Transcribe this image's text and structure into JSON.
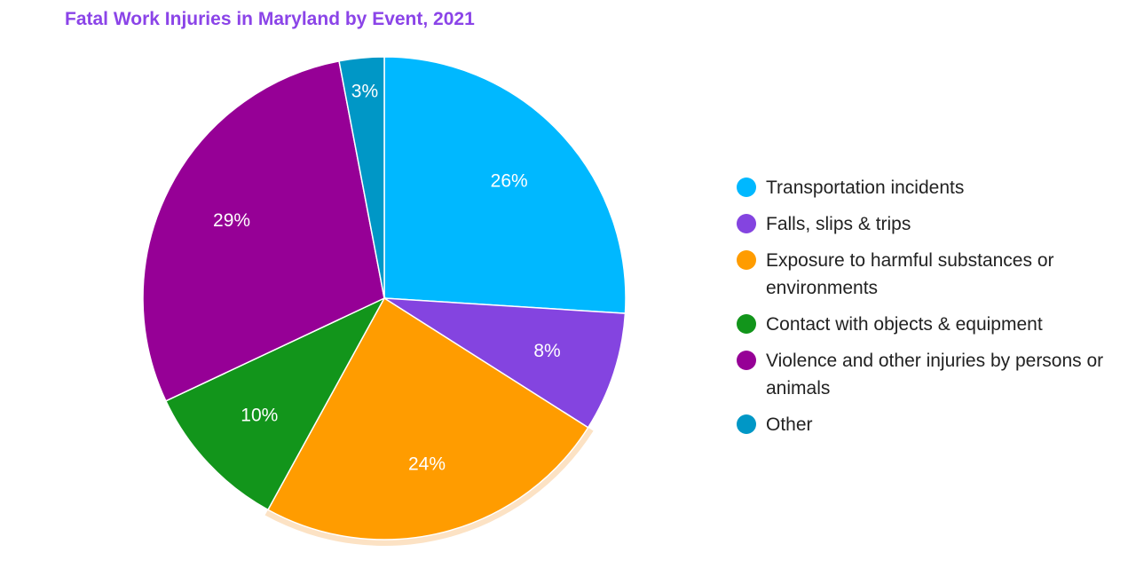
{
  "chart_data": {
    "type": "pie",
    "title": "Fatal Work Injuries in Maryland by Event, 2021",
    "legend_position": "right",
    "slices": [
      {
        "label": "Transportation incidents",
        "value": 26,
        "display": "26%",
        "color": "#00b8ff"
      },
      {
        "label": "Falls, slips & trips",
        "value": 8,
        "display": "8%",
        "color": "#8444e0"
      },
      {
        "label": "Exposure to harmful substances or environments",
        "value": 24,
        "display": "24%",
        "color": "#ff9c00"
      },
      {
        "label": "Contact with objects & equipment",
        "value": 10,
        "display": "10%",
        "color": "#12951b"
      },
      {
        "label": "Violence and other injuries by persons or animals",
        "value": 29,
        "display": "29%",
        "color": "#960096"
      },
      {
        "label": "Other",
        "value": 3,
        "display": "3%",
        "color": "#0097c6"
      }
    ],
    "highlighted_slice": "Exposure to harmful substances or environments",
    "highlight_color": "#fce2c4"
  }
}
